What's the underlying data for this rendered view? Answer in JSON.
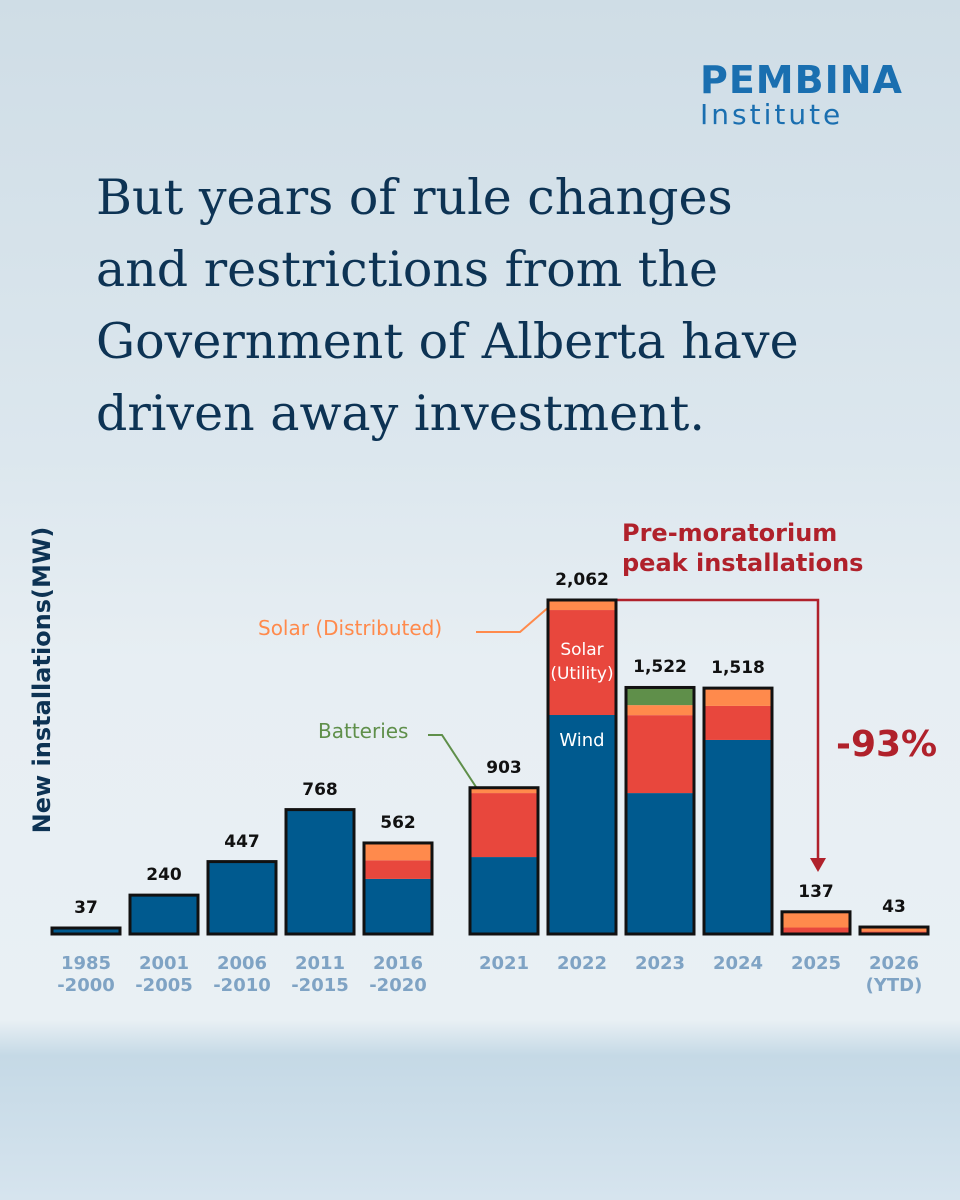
{
  "logo": {
    "name": "PEMBINA",
    "sub": "Institute"
  },
  "chart_data": {
    "type": "stacked-bar",
    "title": "But years of rule changes\nand restrictions from the\nGovernment of Alberta have\ndriven away investment.",
    "y_label": "New installations(MW)",
    "categories": [
      "1985\n-2000",
      "2001\n-2005",
      "2006\n-2010",
      "2011\n-2015",
      "2016\n-2020",
      "2021",
      "2022",
      "2023",
      "2024",
      "2025",
      "2026\n(YTD)"
    ],
    "series": [
      {
        "name": "Wind",
        "color": "#005a8f",
        "values": [
          37,
          240,
          447,
          768,
          340,
          475,
          1352,
          870,
          1198,
          0,
          0
        ]
      },
      {
        "name": "Solar (Utility)",
        "color": "#e8473d",
        "values": [
          0,
          0,
          0,
          0,
          115,
          395,
          648,
          481,
          210,
          40,
          15
        ]
      },
      {
        "name": "Solar (Distributed)",
        "color": "#ff8a4c",
        "values": [
          0,
          0,
          0,
          0,
          107,
          33,
          62,
          62,
          110,
          97,
          28
        ]
      },
      {
        "name": "Batteries",
        "color": "#5f8f4a",
        "values": [
          0,
          0,
          0,
          0,
          0,
          0,
          0,
          109,
          0,
          0,
          0
        ]
      }
    ],
    "totals": [
      37,
      240,
      447,
      768,
      562,
      903,
      2062,
      1522,
      1518,
      137,
      43
    ],
    "total_labels": [
      "37",
      "240",
      "447",
      "768",
      "562",
      "903",
      "2,062",
      "1,522",
      "1,518",
      "137",
      "43"
    ],
    "annotations": {
      "peak": "Pre-moratorium\npeak installations",
      "change": "-93%"
    }
  }
}
